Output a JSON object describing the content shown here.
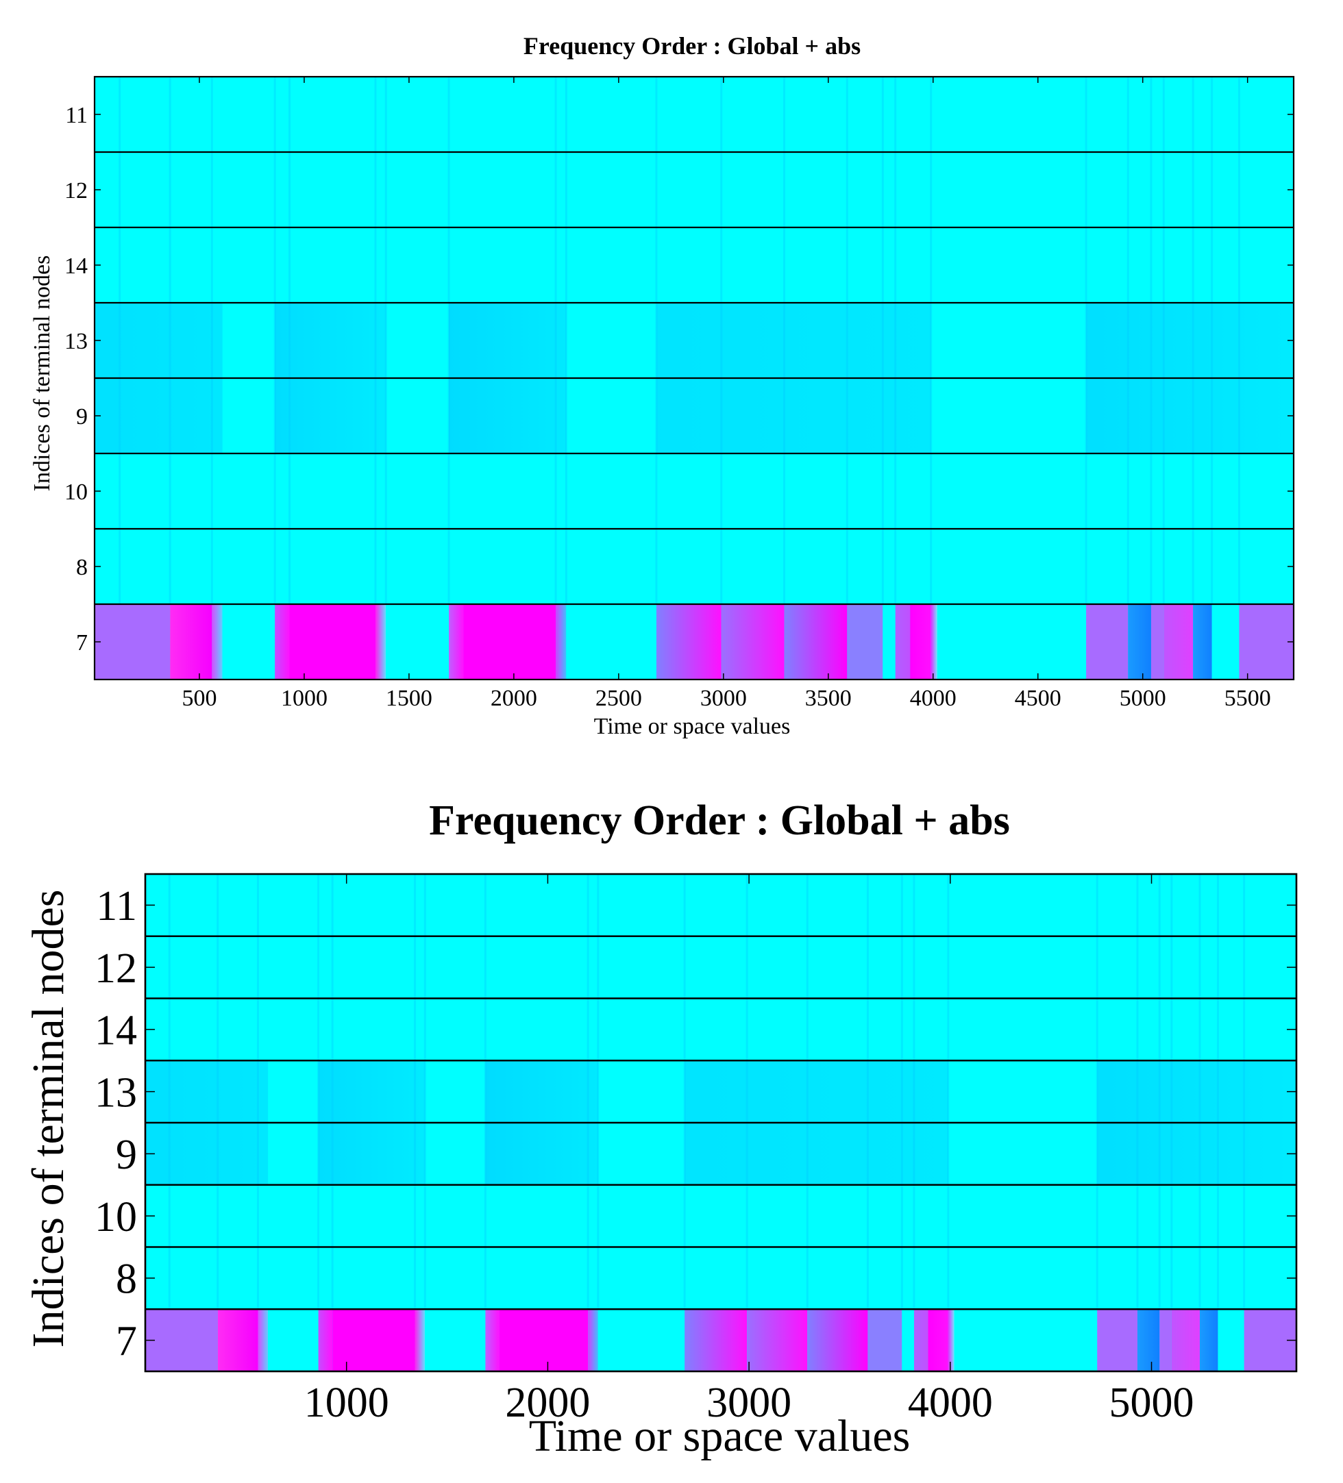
{
  "chart_data": [
    {
      "type": "heatmap",
      "title": "Frequency Order : Global + abs",
      "xlabel": "Time or space values",
      "ylabel": "Indices of terminal nodes",
      "xlim": [
        0,
        5720
      ],
      "xticks": [
        500,
        1000,
        1500,
        2000,
        2500,
        3000,
        3500,
        4000,
        4500,
        5000,
        5500
      ],
      "rows": [
        "11",
        "12",
        "14",
        "13",
        "9",
        "10",
        "8",
        "7"
      ]
    },
    {
      "type": "heatmap",
      "title": "Frequency Order : Global + abs",
      "xlabel": "Time or space values",
      "ylabel": "Indices of terminal nodes",
      "xlim": [
        0,
        5720
      ],
      "xticks": [
        1000,
        2000,
        3000,
        4000,
        5000
      ],
      "rows": [
        "11",
        "12",
        "14",
        "13",
        "9",
        "10",
        "8",
        "7"
      ]
    }
  ],
  "colors": {
    "base": "#00ffff",
    "light_blue": "#00c8ff",
    "mid_blue": "#1a9bff",
    "magenta": "#ff00ff",
    "purple": "#a86bff",
    "blue_violet": "#8080ff"
  },
  "pattern": {
    "row7": [
      {
        "x0": 0,
        "x1": 360,
        "c0": "#a86bff",
        "c1": "#a86bff"
      },
      {
        "x0": 360,
        "x1": 560,
        "c0": "#ff2cf4",
        "c1": "#f600ff"
      },
      {
        "x0": 560,
        "x1": 610,
        "c0": "#d64cff",
        "c1": "#5fd0ff"
      },
      {
        "x0": 610,
        "x1": 860,
        "c0": "#00ffff",
        "c1": "#00ffff"
      },
      {
        "x0": 860,
        "x1": 930,
        "c0": "#c54dff",
        "c1": "#ff10ff"
      },
      {
        "x0": 930,
        "x1": 1340,
        "c0": "#ff00ff",
        "c1": "#ff00ff"
      },
      {
        "x0": 1340,
        "x1": 1390,
        "c0": "#ff20f0",
        "c1": "#60e0ff"
      },
      {
        "x0": 1390,
        "x1": 1690,
        "c0": "#00ffff",
        "c1": "#00ffff"
      },
      {
        "x0": 1690,
        "x1": 1760,
        "c0": "#c060ff",
        "c1": "#ff10ff"
      },
      {
        "x0": 1760,
        "x1": 2200,
        "c0": "#ff00ff",
        "c1": "#ff00ff"
      },
      {
        "x0": 2200,
        "x1": 2250,
        "c0": "#d040ff",
        "c1": "#40c0ff"
      },
      {
        "x0": 2250,
        "x1": 2680,
        "c0": "#00ffff",
        "c1": "#00ffff"
      },
      {
        "x0": 2680,
        "x1": 2990,
        "c0": "#8080ff",
        "c1": "#ff10ff"
      },
      {
        "x0": 2990,
        "x1": 3290,
        "c0": "#9a70ff",
        "c1": "#ff10ff"
      },
      {
        "x0": 3290,
        "x1": 3590,
        "c0": "#8080ff",
        "c1": "#ff00ff"
      },
      {
        "x0": 3590,
        "x1": 3760,
        "c0": "#8a80ff",
        "c1": "#8a80ff"
      },
      {
        "x0": 3760,
        "x1": 3820,
        "c0": "#00ffff",
        "c1": "#00ffff"
      },
      {
        "x0": 3820,
        "x1": 3890,
        "c0": "#b060ff",
        "c1": "#c050ff"
      },
      {
        "x0": 3890,
        "x1": 3990,
        "c0": "#ff00ff",
        "c1": "#ff10ff"
      },
      {
        "x0": 3990,
        "x1": 4020,
        "c0": "#e030ff",
        "c1": "#70e8ff"
      },
      {
        "x0": 4020,
        "x1": 4730,
        "c0": "#00ffff",
        "c1": "#00ffff"
      },
      {
        "x0": 4730,
        "x1": 4930,
        "c0": "#a86bff",
        "c1": "#a86bff"
      },
      {
        "x0": 4930,
        "x1": 5040,
        "c0": "#1a9bff",
        "c1": "#1080ff"
      },
      {
        "x0": 5040,
        "x1": 5100,
        "c0": "#a86bff",
        "c1": "#a86bff"
      },
      {
        "x0": 5100,
        "x1": 5240,
        "c0": "#c055ff",
        "c1": "#e040ff"
      },
      {
        "x0": 5240,
        "x1": 5330,
        "c0": "#1a9bff",
        "c1": "#1080ff"
      },
      {
        "x0": 5330,
        "x1": 5460,
        "c0": "#00ffff",
        "c1": "#00ffff"
      },
      {
        "x0": 5460,
        "x1": 5720,
        "c0": "#a86bff",
        "c1": "#a86bff"
      }
    ],
    "row9_13": [
      {
        "x0": 0,
        "x1": 610,
        "c0": "#00dcff",
        "c1": "#00e4ff"
      },
      {
        "x0": 860,
        "x1": 1390,
        "c0": "#00d8ff",
        "c1": "#00e8ff"
      },
      {
        "x0": 1690,
        "x1": 2250,
        "c0": "#00d6ff",
        "c1": "#00e6ff"
      },
      {
        "x0": 2680,
        "x1": 3990,
        "c0": "#00e0ff",
        "c1": "#00e6ff"
      },
      {
        "x0": 4730,
        "x1": 5720,
        "c0": "#00daff",
        "c1": "#00e8ff"
      }
    ],
    "streaks": [
      120,
      360,
      560,
      860,
      930,
      1340,
      1390,
      1690,
      2200,
      2250,
      2680,
      2990,
      3290,
      3590,
      3760,
      3820,
      3990,
      4730,
      4930,
      5040,
      5100,
      5240,
      5330,
      5460
    ]
  }
}
